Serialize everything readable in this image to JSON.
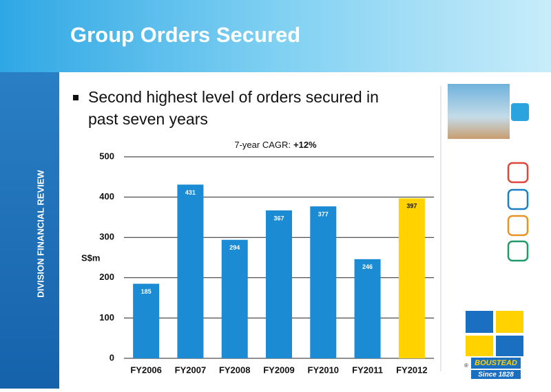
{
  "header": {
    "title": "Group Orders Secured"
  },
  "sidebar": {
    "label": "DIVISION FINANCIAL REVIEW"
  },
  "bullet": {
    "lines": [
      "Second highest level of orders secured in",
      "past seven years"
    ]
  },
  "chart_data": {
    "type": "bar",
    "annotation": "7-year CAGR:",
    "annotation_value": "+12%",
    "y_label": "S$m",
    "categories": [
      "FY2006",
      "FY2007",
      "FY2008",
      "FY2009",
      "FY2010",
      "FY2011",
      "FY2012"
    ],
    "values": [
      185,
      431,
      294,
      367,
      377,
      246,
      397
    ],
    "colors": [
      "#1b8bd3",
      "#1b8bd3",
      "#1b8bd3",
      "#1b8bd3",
      "#1b8bd3",
      "#1b8bd3",
      "#ffd200"
    ],
    "ylim": [
      0,
      500
    ],
    "yticks": [
      0,
      100,
      200,
      300,
      400,
      500
    ],
    "grid": true
  },
  "logo": {
    "name": "BOUSTEAD",
    "tagline": "Since 1828",
    "mark": "®"
  }
}
